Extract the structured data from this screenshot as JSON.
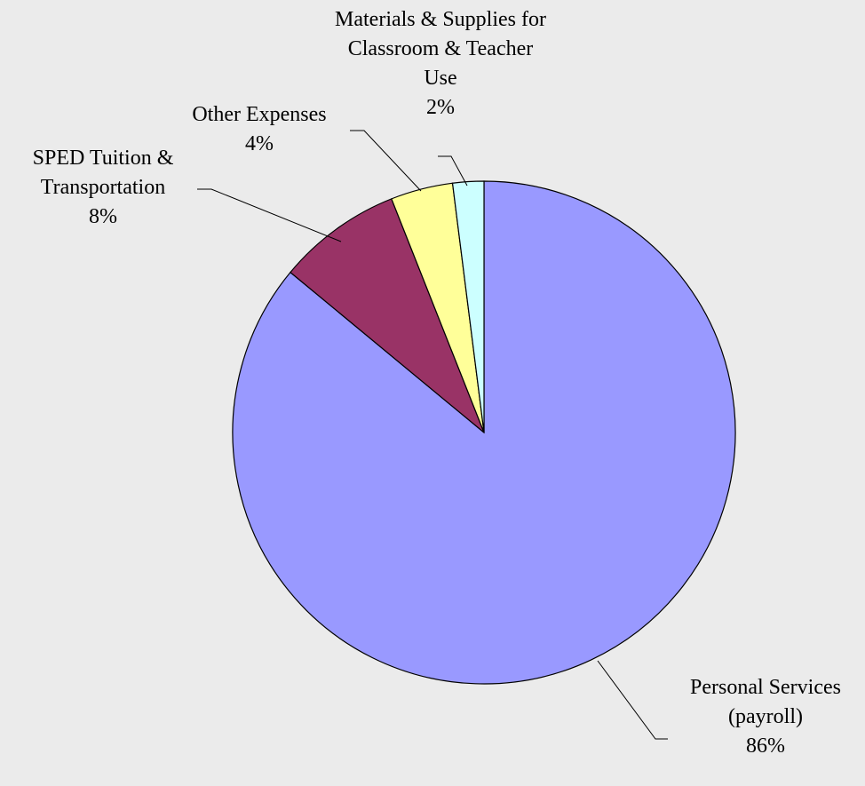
{
  "chart_data": {
    "type": "pie",
    "title": "",
    "start": "12 o'clock, clockwise",
    "slices": [
      {
        "name": "Personal Services (payroll)",
        "label_lines": [
          "Personal Services",
          "(payroll)"
        ],
        "percent_label": "86%",
        "value": 86,
        "color": "#9999ff"
      },
      {
        "name": "SPED Tuition & Transportation",
        "label_lines": [
          "SPED Tuition &",
          "Transportation"
        ],
        "percent_label": "8%",
        "value": 8,
        "color": "#993366"
      },
      {
        "name": "Other Expenses",
        "label_lines": [
          "Other Expenses"
        ],
        "percent_label": "4%",
        "value": 4,
        "color": "#ffff99"
      },
      {
        "name": "Materials & Supplies for Classroom & Teacher Use",
        "label_lines": [
          "Materials & Supplies for",
          "Classroom & Teacher",
          "Use"
        ],
        "percent_label": "2%",
        "value": 2,
        "color": "#ccffff"
      }
    ]
  }
}
